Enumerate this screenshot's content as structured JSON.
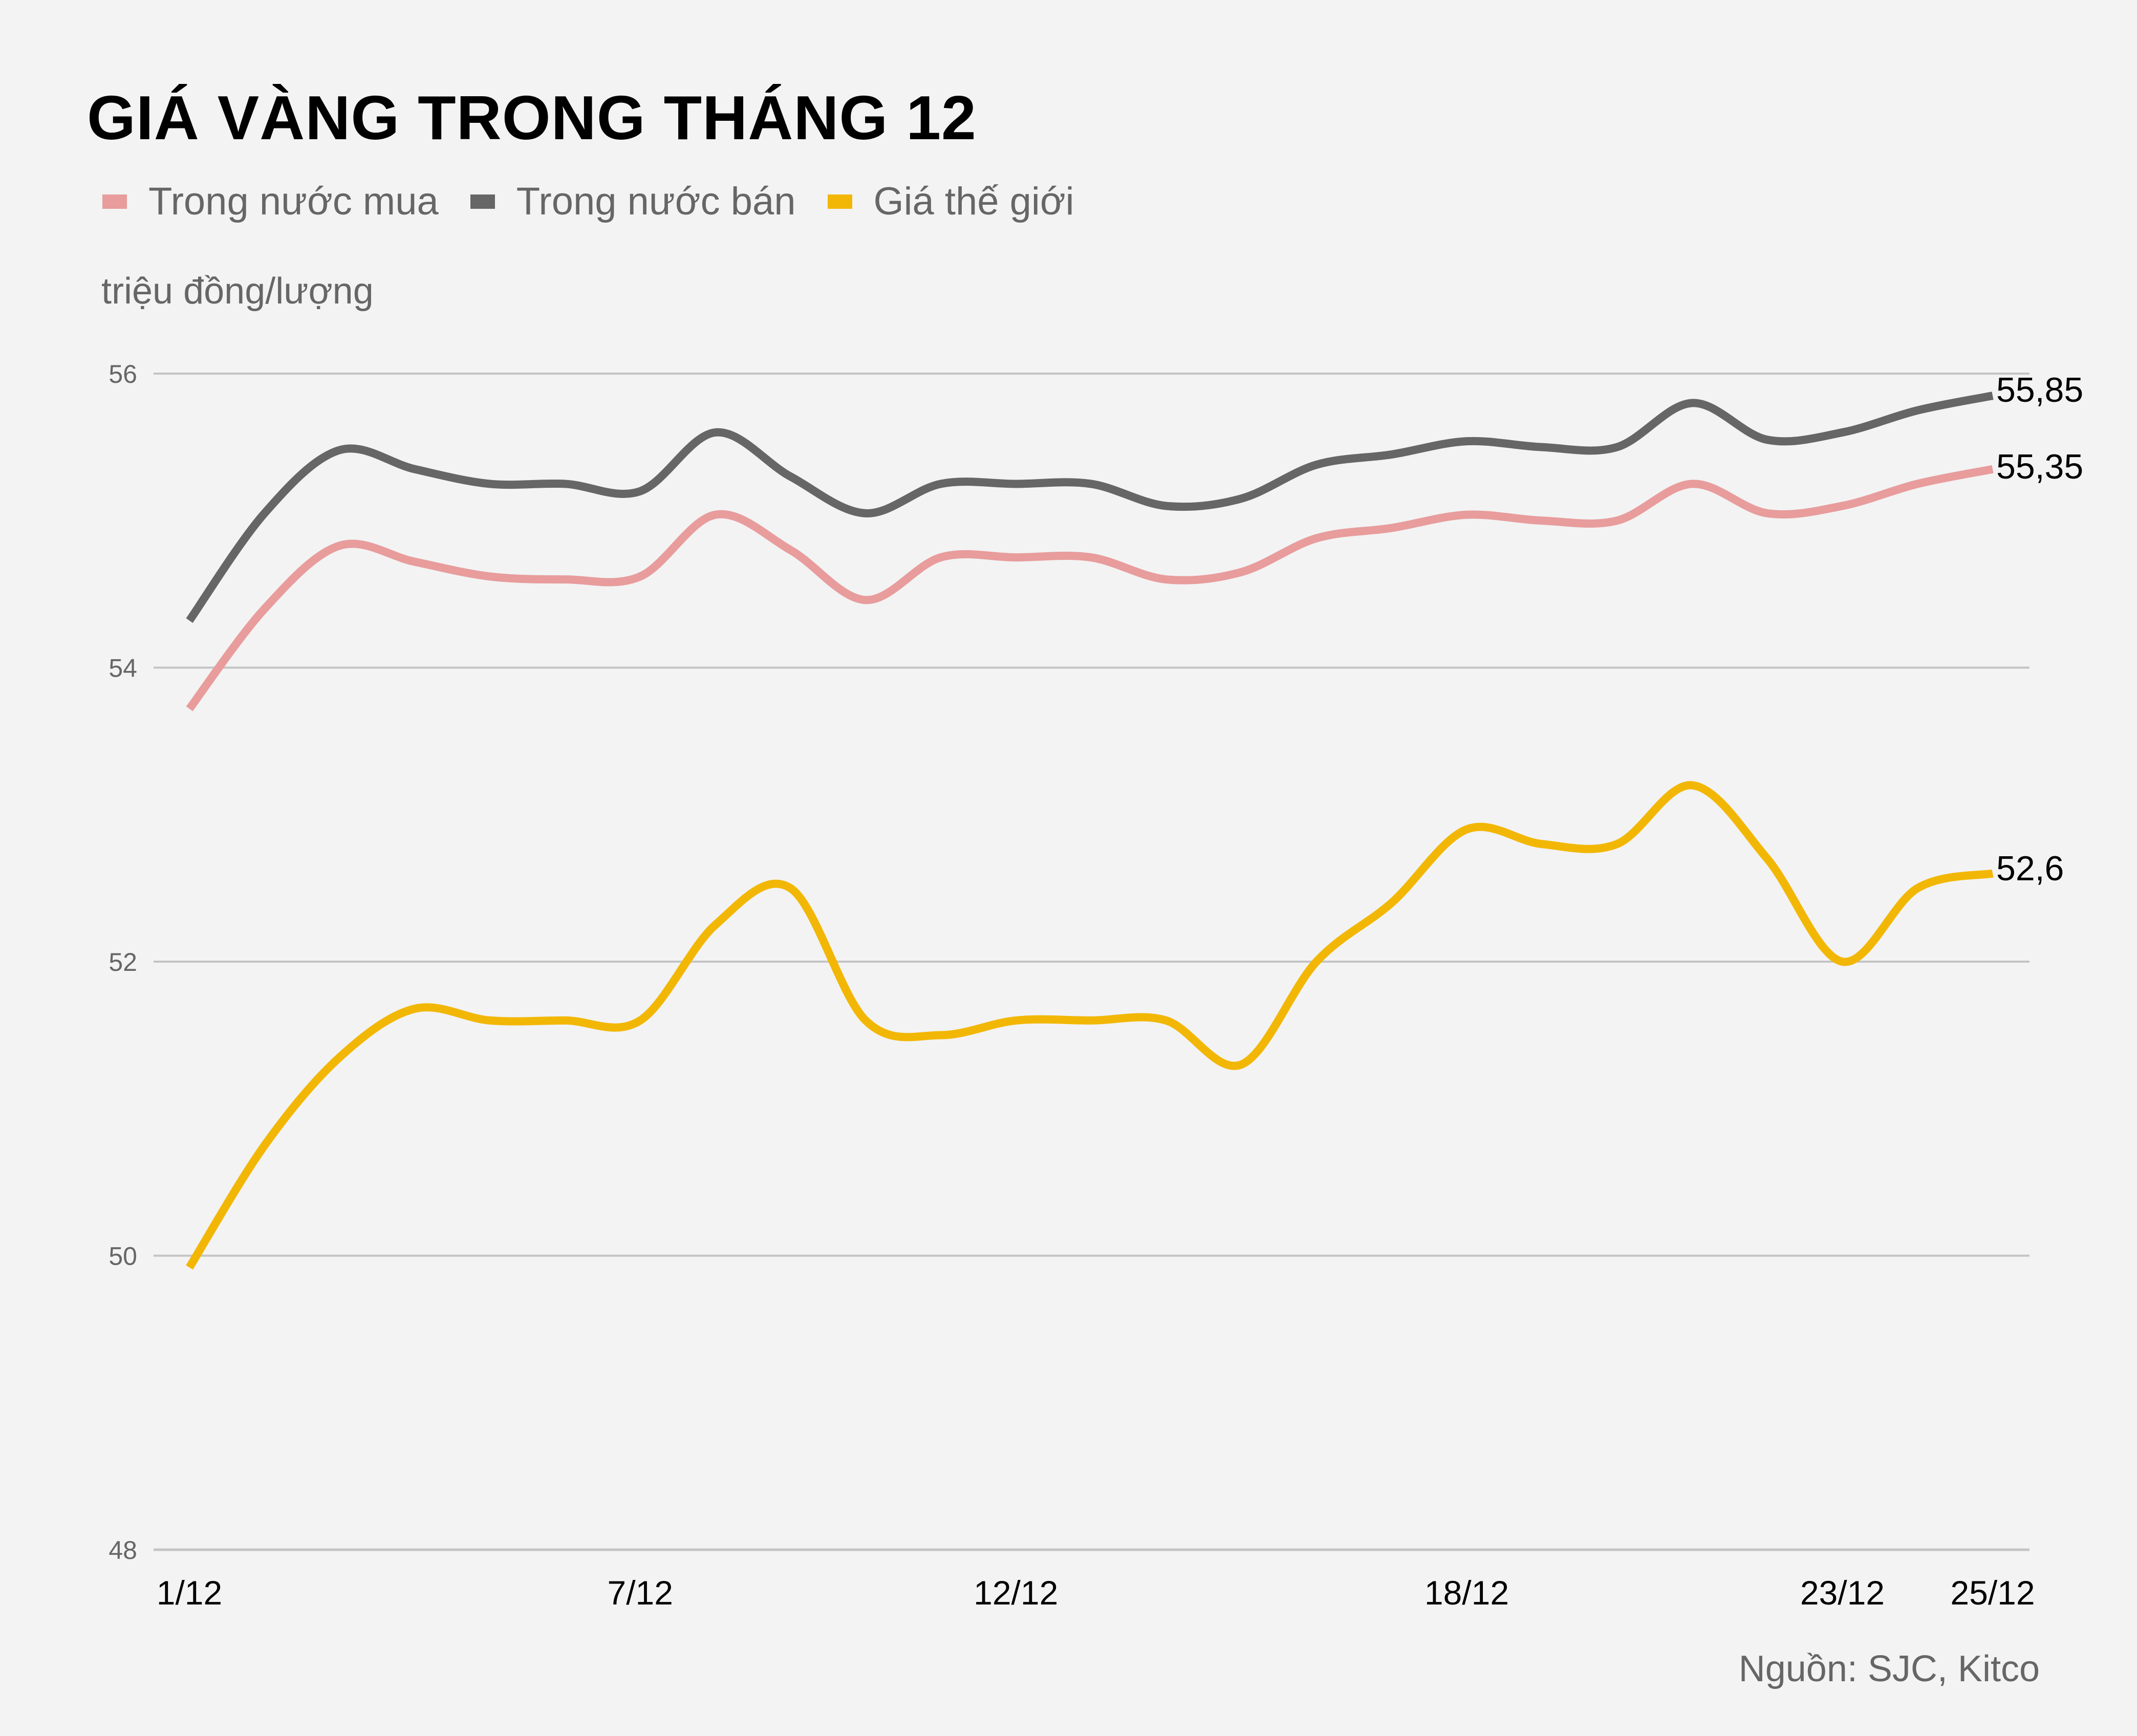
{
  "header": {
    "title": "GIÁ VÀNG TRONG THÁNG 12",
    "unit_label": "triệu đồng/lượng",
    "source": "Nguồn: SJC, Kitco"
  },
  "legend": [
    {
      "label": "Trong nước mua",
      "color": "#e89c9c"
    },
    {
      "label": "Trong nước bán",
      "color": "#666666"
    },
    {
      "label": "Giá thế giới",
      "color": "#f2b705"
    }
  ],
  "end_labels": {
    "sell": "55,85",
    "buy": "55,35",
    "world": "52,6"
  },
  "chart_data": {
    "type": "line",
    "title": "GIÁ VÀNG TRONG THÁNG 12",
    "xlabel": "",
    "ylabel": "triệu đồng/lượng",
    "ylim": [
      48,
      56
    ],
    "yticks": [
      48,
      50,
      52,
      54,
      56
    ],
    "grid": true,
    "legend_position": "top-left",
    "x": [
      1,
      2,
      3,
      4,
      5,
      6,
      7,
      8,
      9,
      10,
      11,
      12,
      13,
      14,
      15,
      16,
      17,
      18,
      19,
      20,
      21,
      22,
      23,
      24,
      25
    ],
    "xtick_labels": [
      {
        "day": 1,
        "label": "1/12"
      },
      {
        "day": 7,
        "label": "7/12"
      },
      {
        "day": 12,
        "label": "12/12"
      },
      {
        "day": 18,
        "label": "18/12"
      },
      {
        "day": 23,
        "label": "23/12"
      },
      {
        "day": 25,
        "label": "25/12"
      }
    ],
    "series": [
      {
        "name": "Trong nước mua",
        "color": "#e89c9c",
        "values": [
          53.72,
          54.4,
          54.83,
          54.72,
          54.62,
          54.6,
          54.62,
          55.04,
          54.8,
          54.46,
          54.75,
          54.75,
          54.75,
          54.6,
          54.65,
          54.88,
          54.95,
          55.04,
          55.0,
          55.0,
          55.25,
          55.05,
          55.1,
          55.25,
          55.35
        ]
      },
      {
        "name": "Trong nước bán",
        "color": "#666666",
        "values": [
          54.32,
          55.05,
          55.48,
          55.35,
          55.25,
          55.25,
          55.2,
          55.6,
          55.3,
          55.05,
          55.25,
          55.25,
          55.25,
          55.1,
          55.15,
          55.38,
          55.45,
          55.54,
          55.5,
          55.5,
          55.8,
          55.55,
          55.6,
          55.75,
          55.85
        ]
      },
      {
        "name": "Giá thế giới",
        "color": "#f2b705",
        "values": [
          49.92,
          50.75,
          51.35,
          51.68,
          51.6,
          51.6,
          51.6,
          52.25,
          52.5,
          51.6,
          51.5,
          51.6,
          51.6,
          51.6,
          51.3,
          52.0,
          52.4,
          52.9,
          52.8,
          52.8,
          53.2,
          52.7,
          52.0,
          52.5,
          52.6
        ]
      }
    ],
    "annotations": [
      "55,85",
      "55,35",
      "52,6"
    ]
  }
}
